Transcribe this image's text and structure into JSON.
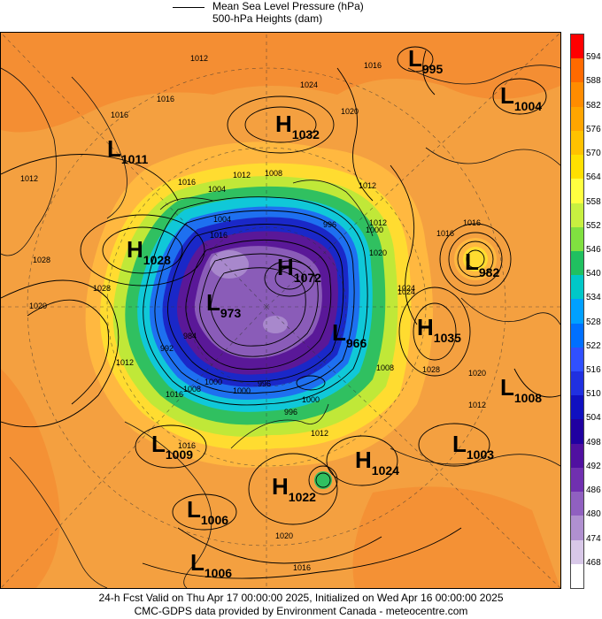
{
  "legend": {
    "line_label_1": "Mean Sea Level Pressure (hPa)",
    "line_label_2": "500-hPa Heights (dam)"
  },
  "footer": {
    "line1": "24-h Fcst Valid on Thu Apr 17 00:00:00 2025, Initialized on Wed Apr 16 00:00:00 2025",
    "line2": "CMC-GDPS data provided by Environment Canada - meteocentre.com"
  },
  "colorbar": {
    "ticks": [
      "594",
      "588",
      "582",
      "576",
      "570",
      "564",
      "558",
      "552",
      "546",
      "540",
      "534",
      "528",
      "522",
      "516",
      "510",
      "504",
      "498",
      "492",
      "486",
      "480",
      "474",
      "468"
    ],
    "colors": [
      "#ff0000",
      "#ff6a00",
      "#ff8c00",
      "#ffa500",
      "#ffc200",
      "#ffe000",
      "#ffff40",
      "#c8f040",
      "#80e040",
      "#20c060",
      "#00c8c8",
      "#00a0ff",
      "#0070ff",
      "#3050ff",
      "#2030e0",
      "#1010c0",
      "#2000a0",
      "#5010a0",
      "#7030b0",
      "#9060c0",
      "#b090d0",
      "#d8c8e8",
      "#ffffff"
    ]
  },
  "systems": [
    {
      "type": "L",
      "value": "995"
    },
    {
      "type": "L",
      "value": "1004"
    },
    {
      "type": "H",
      "value": "1032"
    },
    {
      "type": "L",
      "value": "1011"
    },
    {
      "type": "H",
      "value": "1028"
    },
    {
      "type": "H",
      "value": "1072"
    },
    {
      "type": "L",
      "value": "982"
    },
    {
      "type": "L",
      "value": "973"
    },
    {
      "type": "L",
      "value": "966"
    },
    {
      "type": "H",
      "value": "1035"
    },
    {
      "type": "L",
      "value": "1008"
    },
    {
      "type": "L",
      "value": "1009"
    },
    {
      "type": "L",
      "value": "1003"
    },
    {
      "type": "H",
      "value": "1024"
    },
    {
      "type": "H",
      "value": "1022"
    },
    {
      "type": "L",
      "value": "1006"
    },
    {
      "type": "L",
      "value": "1006"
    }
  ],
  "isobar_labels": [
    "1012",
    "1024",
    "1016",
    "1016",
    "1020",
    "1016",
    "1012",
    "1016",
    "1004",
    "1008",
    "1012",
    "1012",
    "1028",
    "1028",
    "1020",
    "1012",
    "1016",
    "1024",
    "1016",
    "1012",
    "1020",
    "1016",
    "1004",
    "1000",
    "996",
    "984",
    "992",
    "1000",
    "1020",
    "1024",
    "1028",
    "1012",
    "1008",
    "1016",
    "1000",
    "996",
    "996",
    "1000",
    "1012",
    "1008",
    "1016",
    "1020",
    "1016"
  ]
}
